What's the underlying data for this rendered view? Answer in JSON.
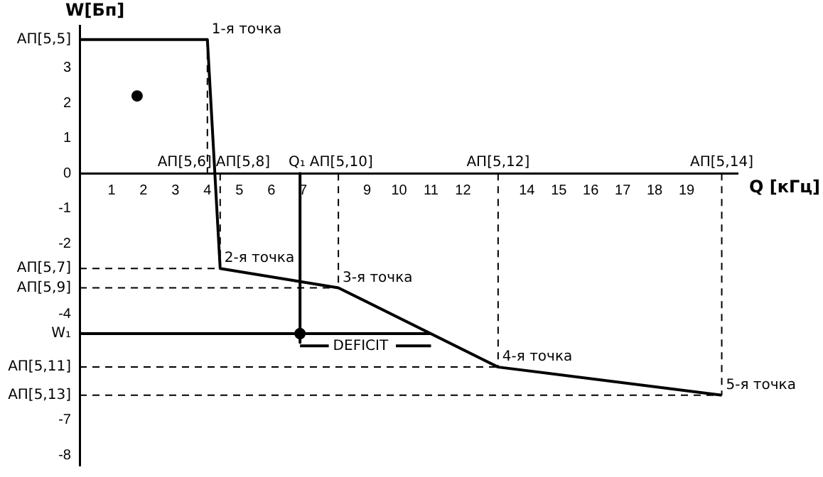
{
  "chart_data": {
    "type": "line",
    "xlabel": "Q [кГц]",
    "ylabel": "W[Бп]",
    "xlim": [
      0,
      20.6
    ],
    "ylim": [
      -8.3,
      4.2
    ],
    "xticks": [
      1,
      2,
      3,
      4,
      5,
      6,
      7,
      9,
      10,
      11,
      12,
      14,
      15,
      16,
      17,
      18,
      19
    ],
    "yticks": [
      3,
      2,
      1,
      0,
      -1,
      -2,
      -4,
      -7,
      -8
    ],
    "grid": false,
    "legend": false,
    "series": [
      {
        "color": "#000000",
        "x": [
          0,
          4,
          4.4,
          8.1,
          13.1,
          20.1
        ],
        "values": [
          3.8,
          3.8,
          -2.7,
          -3.25,
          -5.5,
          -6.3
        ]
      },
      {
        "color": "#000000",
        "line_style": "dashed",
        "x": [
          4,
          4
        ],
        "values": [
          3.8,
          0
        ]
      },
      {
        "color": "#000000",
        "line_style": "dashed",
        "x": [
          4.4,
          4.4
        ],
        "values": [
          0,
          -2.7
        ]
      },
      {
        "color": "#000000",
        "line_style": "dashed",
        "x": [
          8.1,
          8.1
        ],
        "values": [
          0,
          -3.25
        ]
      },
      {
        "color": "#000000",
        "line_style": "dashed",
        "x": [
          13.1,
          13.1
        ],
        "values": [
          0,
          -5.5
        ]
      },
      {
        "color": "#000000",
        "line_style": "dashed",
        "x": [
          20.1,
          20.1
        ],
        "values": [
          0,
          -6.3
        ]
      },
      {
        "color": "#000000",
        "line_style": "dashed",
        "x": [
          0,
          4.4
        ],
        "values": [
          -2.7,
          -2.7
        ]
      },
      {
        "color": "#000000",
        "line_style": "dashed",
        "x": [
          0,
          8.1
        ],
        "values": [
          -3.25,
          -3.25
        ]
      },
      {
        "color": "#000000",
        "line_style": "dashed",
        "x": [
          0,
          13.1
        ],
        "values": [
          -5.5,
          -5.5
        ]
      },
      {
        "color": "#000000",
        "line_style": "dashed",
        "x": [
          0,
          20.1
        ],
        "values": [
          -6.3,
          -6.3
        ]
      },
      {
        "color": "#000000",
        "x": [
          0,
          11
        ],
        "values": [
          -4.55,
          -4.55
        ]
      },
      {
        "color": "#000000",
        "x": [
          6.9,
          6.9
        ],
        "values": [
          0,
          -4.8
        ]
      },
      {
        "color": "#000000",
        "x": [
          6.9,
          7.8,
          8.8,
          9.9,
          11
        ],
        "values": [
          -4.9,
          -4.9,
          null,
          -4.9,
          -4.9
        ]
      },
      {
        "type": "scatter",
        "color": "#000000",
        "x": [
          1.8,
          6.9
        ],
        "values": [
          2.2,
          -4.55
        ]
      }
    ],
    "annotations": [
      {
        "text": "1-я точка",
        "x": 4,
        "y": 3.8
      },
      {
        "text": "2-я точка",
        "x": 4.4,
        "y": -2.7
      },
      {
        "text": "3-я точка",
        "x": 8.1,
        "y": -3.25
      },
      {
        "text": "4-я точка",
        "x": 13.1,
        "y": -5.5
      },
      {
        "text": "5-я точка",
        "x": 20.1,
        "y": -6.3
      },
      {
        "text": "АП[5,6]",
        "x": 4,
        "y": 0
      },
      {
        "text": "АП[5,8]",
        "x": 4.4,
        "y": 0
      },
      {
        "text": "Q₁",
        "x": 6.9,
        "y": 0
      },
      {
        "text": "АП[5,10]",
        "x": 8.1,
        "y": 0
      },
      {
        "text": "АП[5,12]",
        "x": 13.1,
        "y": 0
      },
      {
        "text": "АП[5,14]",
        "x": 20.1,
        "y": 0
      },
      {
        "text": "АП[5,5]",
        "x": 0,
        "y": 3.8
      },
      {
        "text": "АП[5,7]",
        "x": 0,
        "y": -2.7
      },
      {
        "text": "АП[5,9]",
        "x": 0,
        "y": -3.25
      },
      {
        "text": "W₁",
        "x": 0,
        "y": -4.55
      },
      {
        "text": "АП[5,11]",
        "x": 0,
        "y": -5.5
      },
      {
        "text": "АП[5,13]",
        "x": 0,
        "y": -6.3
      },
      {
        "text": "DEFICIT",
        "x": 7.8,
        "y": -4.9
      }
    ]
  }
}
